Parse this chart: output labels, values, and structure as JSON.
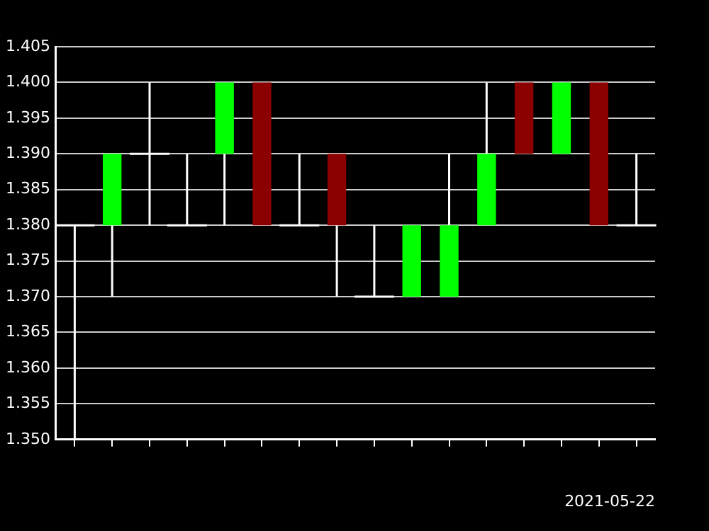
{
  "chart_data": {
    "type": "candlestick",
    "xlabel": "2021-05-22",
    "categories": [
      null,
      null,
      null,
      null,
      null,
      null,
      null,
      null,
      null,
      null,
      null,
      null,
      null,
      null,
      null,
      null
    ],
    "ohlc": [
      [
        1.38,
        1.38,
        1.35,
        1.38
      ],
      [
        1.38,
        1.39,
        1.37,
        1.39
      ],
      [
        1.39,
        1.4,
        1.38,
        1.39
      ],
      [
        1.38,
        1.39,
        1.38,
        1.38
      ],
      [
        1.39,
        1.4,
        1.38,
        1.4
      ],
      [
        1.4,
        1.4,
        1.38,
        1.38
      ],
      [
        1.38,
        1.39,
        1.38,
        1.38
      ],
      [
        1.39,
        1.39,
        1.37,
        1.38
      ],
      [
        1.37,
        1.38,
        1.37,
        1.37
      ],
      [
        1.37,
        1.38,
        1.37,
        1.38
      ],
      [
        1.37,
        1.39,
        1.37,
        1.38
      ],
      [
        1.38,
        1.4,
        1.38,
        1.39
      ],
      [
        1.4,
        1.4,
        1.39,
        1.39
      ],
      [
        1.39,
        1.4,
        1.39,
        1.4
      ],
      [
        1.4,
        1.4,
        1.38,
        1.38
      ],
      [
        1.38,
        1.39,
        1.38,
        1.38
      ]
    ],
    "ylim": [
      1.35,
      1.405
    ],
    "yticks": [
      {
        "value": 1.35,
        "label": "1.350"
      },
      {
        "value": 1.355,
        "label": "1.355"
      },
      {
        "value": 1.36,
        "label": "1.360"
      },
      {
        "value": 1.365,
        "label": "1.365"
      },
      {
        "value": 1.37,
        "label": "1.370"
      },
      {
        "value": 1.375,
        "label": "1.375"
      },
      {
        "value": 1.38,
        "label": "1.380"
      },
      {
        "value": 1.385,
        "label": "1.385"
      },
      {
        "value": 1.39,
        "label": "1.390"
      },
      {
        "value": 1.395,
        "label": "1.395"
      },
      {
        "value": 1.4,
        "label": "1.400"
      },
      {
        "value": 1.405,
        "label": "1.405"
      }
    ],
    "grid": "y",
    "legend": false
  }
}
